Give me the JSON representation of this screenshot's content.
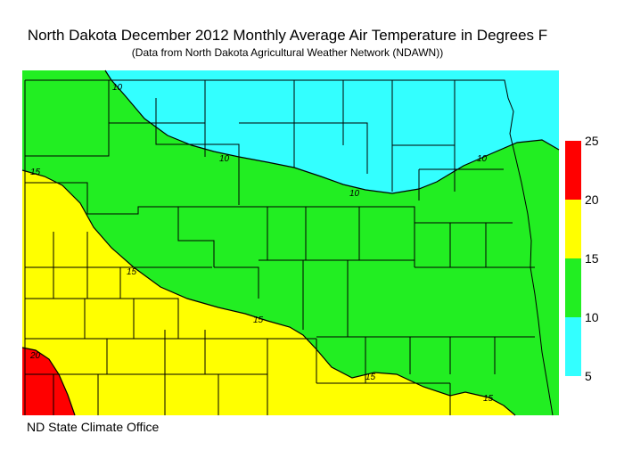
{
  "header": {
    "title": "North Dakota December 2012 Monthly Average Air Temperature in Degrees F",
    "subtitle": "(Data from North Dakota Agricultural Weather Network (NDAWN))"
  },
  "footer": {
    "credit": "ND State Climate Office"
  },
  "legend": {
    "bins": [
      {
        "min": 5,
        "max": 10,
        "color": "#33ffff"
      },
      {
        "min": 10,
        "max": 15,
        "color": "#22ee22"
      },
      {
        "min": 15,
        "max": 20,
        "color": "#ffff00"
      },
      {
        "min": 20,
        "max": 25,
        "color": "#ff0000"
      }
    ],
    "ticks": [
      "25",
      "20",
      "15",
      "10",
      "5"
    ]
  },
  "map": {
    "contour_labels": [
      "10",
      "10",
      "10",
      "10",
      "15",
      "15",
      "15",
      "15",
      "15",
      "20"
    ]
  },
  "colors": {
    "cold": "#33ffff",
    "mid": "#22ee22",
    "warm": "#ffff00",
    "hot": "#ff0000",
    "border": "#000000"
  }
}
